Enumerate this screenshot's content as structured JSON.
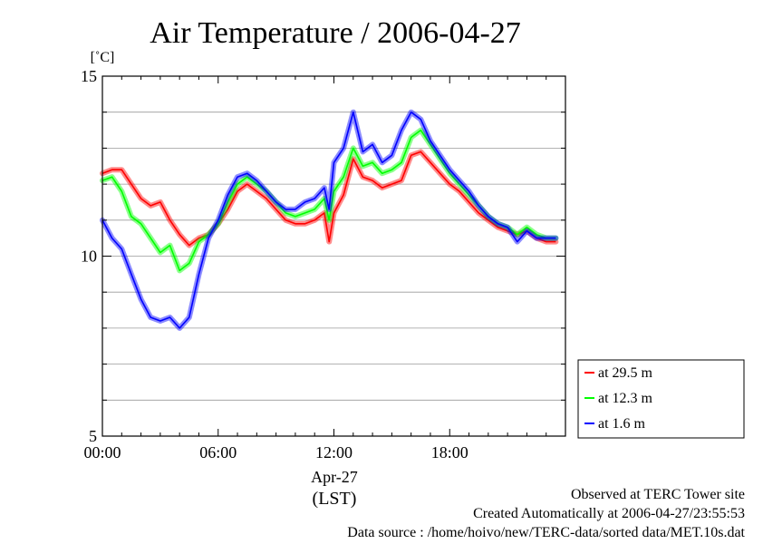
{
  "chart_data": {
    "type": "line",
    "title": "Air Temperature / 2006-04-27",
    "ylabel": "[˚C]",
    "xlabel": "(LST)",
    "x_date_label": "Apr-27",
    "ylim": [
      5,
      15
    ],
    "xlim_hours": [
      0,
      24
    ],
    "yticks": [
      {
        "value": 5,
        "label": "5"
      },
      {
        "value": 10,
        "label": "10"
      },
      {
        "value": 15,
        "label": "15"
      }
    ],
    "xticks": [
      {
        "value": 0,
        "label": "00:00"
      },
      {
        "value": 6,
        "label": "06:00"
      },
      {
        "value": 12,
        "label": "12:00"
      },
      {
        "value": 18,
        "label": "18:00"
      }
    ],
    "grid": true,
    "legend_position": "right-bottom-outside",
    "x": [
      0,
      0.5,
      1,
      1.5,
      2,
      2.5,
      3,
      3.5,
      4,
      4.5,
      5,
      5.5,
      6,
      6.5,
      7,
      7.5,
      8,
      8.5,
      9,
      9.5,
      10,
      10.5,
      11,
      11.5,
      11.75,
      12,
      12.5,
      13,
      13.5,
      14,
      14.5,
      15,
      15.5,
      16,
      16.5,
      17,
      17.5,
      18,
      18.5,
      19,
      19.5,
      20,
      20.5,
      21,
      21.5,
      22,
      22.5,
      23,
      23.5
    ],
    "series": [
      {
        "name": "at 29.5 m",
        "color": "#ff0000",
        "values": [
          12.3,
          12.4,
          12.4,
          12.0,
          11.6,
          11.4,
          11.5,
          11.0,
          10.6,
          10.3,
          10.5,
          10.6,
          10.9,
          11.3,
          11.8,
          12.0,
          11.8,
          11.6,
          11.3,
          11.0,
          10.9,
          10.9,
          11.0,
          11.2,
          10.4,
          11.2,
          11.7,
          12.7,
          12.2,
          12.1,
          11.9,
          12.0,
          12.1,
          12.8,
          12.9,
          12.6,
          12.3,
          12.0,
          11.8,
          11.5,
          11.2,
          11.0,
          10.8,
          10.7,
          10.6,
          10.7,
          10.5,
          10.4,
          10.4
        ]
      },
      {
        "name": "at 12.3 m",
        "color": "#00ff00",
        "values": [
          12.1,
          12.2,
          11.8,
          11.1,
          10.9,
          10.5,
          10.1,
          10.3,
          9.6,
          9.8,
          10.4,
          10.6,
          10.9,
          11.5,
          12.0,
          12.2,
          12.0,
          11.8,
          11.5,
          11.2,
          11.1,
          11.2,
          11.3,
          11.6,
          11.0,
          11.8,
          12.2,
          13.0,
          12.5,
          12.6,
          12.3,
          12.4,
          12.6,
          13.3,
          13.5,
          13.1,
          12.7,
          12.3,
          12.0,
          11.7,
          11.4,
          11.1,
          10.9,
          10.8,
          10.6,
          10.8,
          10.6,
          10.5,
          10.5
        ]
      },
      {
        "name": "at 1.6 m",
        "color": "#0000ff",
        "values": [
          11.0,
          10.5,
          10.2,
          9.5,
          8.8,
          8.3,
          8.2,
          8.3,
          8.0,
          8.3,
          9.5,
          10.5,
          11.0,
          11.7,
          12.2,
          12.3,
          12.1,
          11.8,
          11.5,
          11.3,
          11.3,
          11.5,
          11.6,
          11.9,
          11.3,
          12.6,
          13.0,
          14.0,
          12.9,
          13.1,
          12.6,
          12.8,
          13.5,
          14.0,
          13.8,
          13.2,
          12.8,
          12.4,
          12.1,
          11.8,
          11.4,
          11.1,
          10.9,
          10.8,
          10.4,
          10.7,
          10.5,
          10.5,
          10.5
        ]
      }
    ],
    "annotations": [
      "Observed at TERC Tower site",
      "Created Automatically at 2006-04-27/23:55:53",
      "Data source : /home/hoivo/new/TERC-data/sorted  data/MET.10s.dat"
    ]
  }
}
